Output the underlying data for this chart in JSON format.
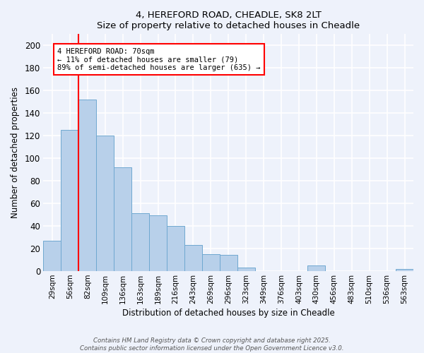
{
  "title": "4, HEREFORD ROAD, CHEADLE, SK8 2LT",
  "subtitle": "Size of property relative to detached houses in Cheadle",
  "xlabel": "Distribution of detached houses by size in Cheadle",
  "ylabel": "Number of detached properties",
  "categories": [
    "29sqm",
    "56sqm",
    "82sqm",
    "109sqm",
    "136sqm",
    "163sqm",
    "189sqm",
    "216sqm",
    "243sqm",
    "269sqm",
    "296sqm",
    "323sqm",
    "349sqm",
    "376sqm",
    "403sqm",
    "430sqm",
    "456sqm",
    "483sqm",
    "510sqm",
    "536sqm",
    "563sqm"
  ],
  "values": [
    27,
    125,
    152,
    120,
    92,
    51,
    49,
    40,
    23,
    15,
    14,
    3,
    0,
    0,
    0,
    5,
    0,
    0,
    0,
    0,
    2
  ],
  "bar_color": "#b8d0ea",
  "bar_edge_color": "#6fa8d0",
  "vline_color": "red",
  "annotation_title": "4 HEREFORD ROAD: 70sqm",
  "annotation_line1": "← 11% of detached houses are smaller (79)",
  "annotation_line2": "89% of semi-detached houses are larger (635) →",
  "annotation_box_color": "white",
  "annotation_box_edge_color": "red",
  "ylim": [
    0,
    210
  ],
  "yticks": [
    0,
    20,
    40,
    60,
    80,
    100,
    120,
    140,
    160,
    180,
    200
  ],
  "background_color": "#eef2fb",
  "grid_color": "white",
  "footer_line1": "Contains HM Land Registry data © Crown copyright and database right 2025.",
  "footer_line2": "Contains public sector information licensed under the Open Government Licence v3.0."
}
